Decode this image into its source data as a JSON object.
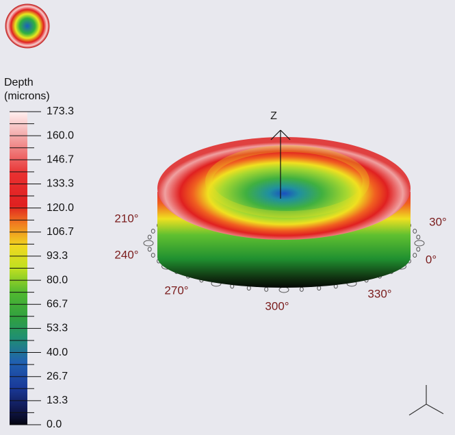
{
  "legend": {
    "title_lines": [
      "Depth",
      "(microns)"
    ],
    "ticks": [
      "173.3",
      "160.0",
      "146.7",
      "133.3",
      "120.0",
      "106.7",
      "93.3",
      "80.0",
      "66.7",
      "53.3",
      "40.0",
      "26.7",
      "13.3",
      "0.0"
    ]
  },
  "view": {
    "axis_label": "Z",
    "angle_labels": [
      "210°",
      "30°",
      "240°",
      "0°",
      "270°",
      "300°",
      "330°"
    ]
  }
}
